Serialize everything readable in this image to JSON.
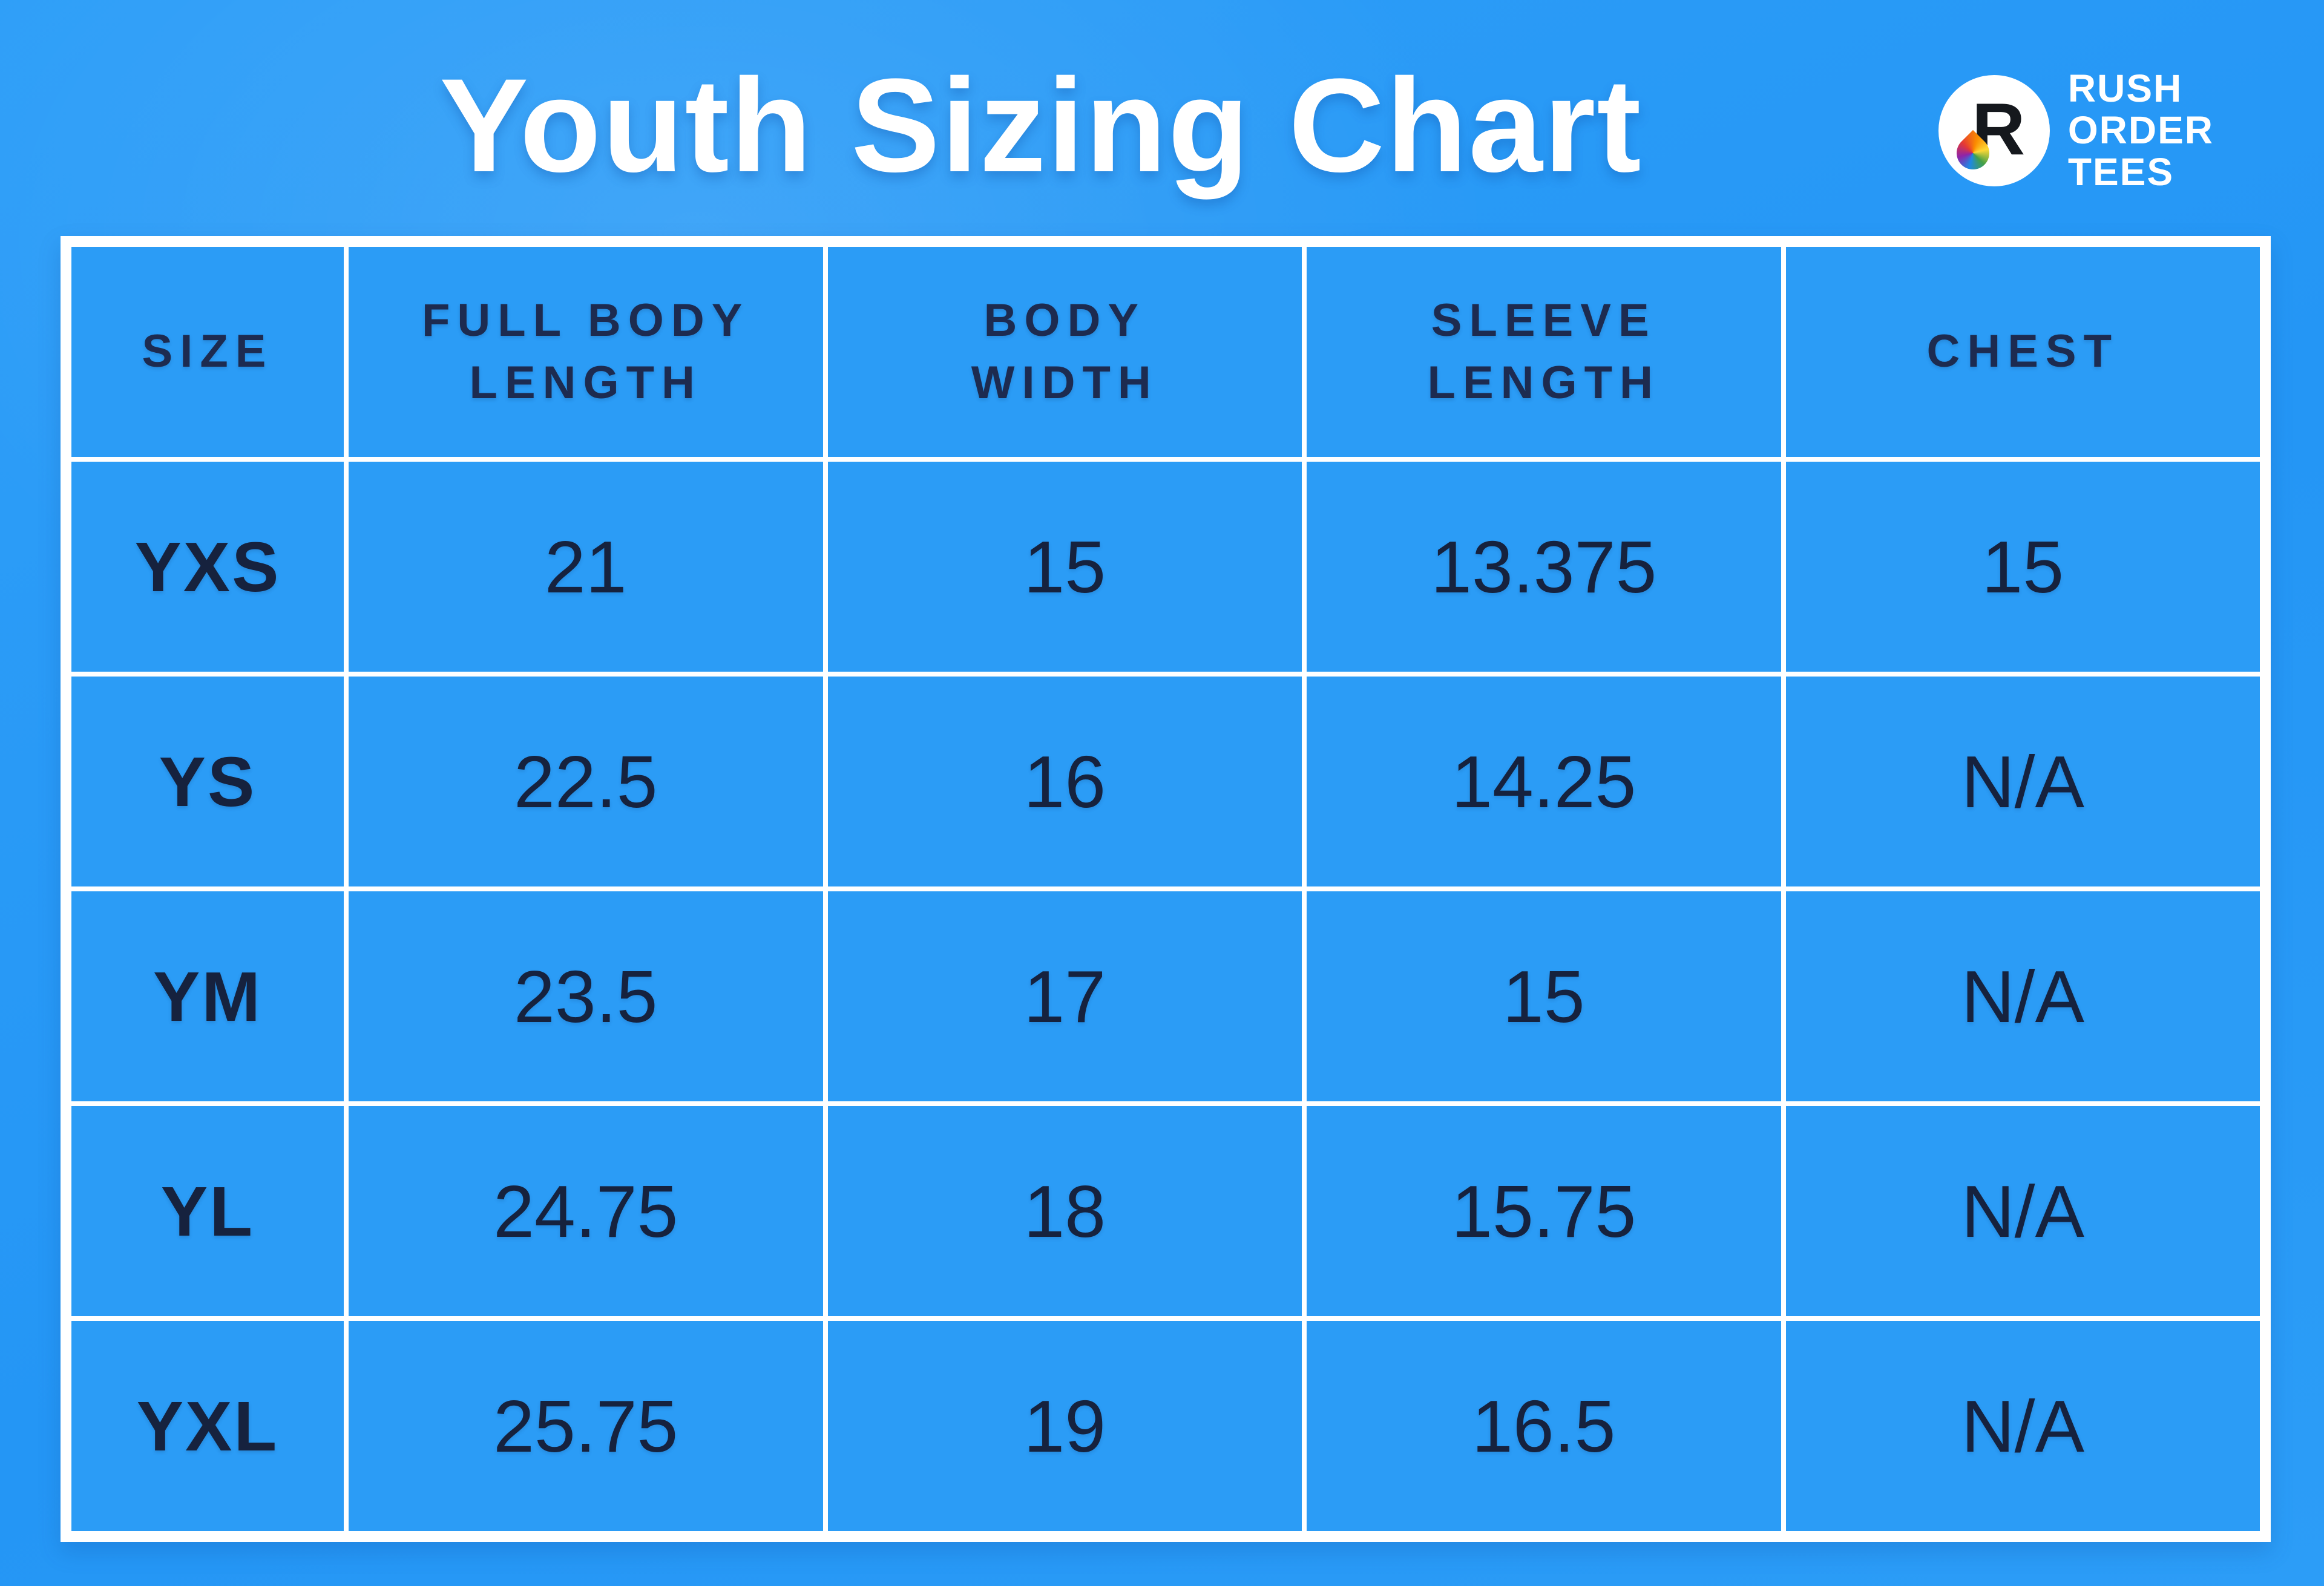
{
  "title": "Youth Sizing Chart",
  "brand": {
    "monogram": "R",
    "lines": [
      "RUSH",
      "ORDER",
      "TEES"
    ]
  },
  "display": {
    "header_labels": [
      "SIZE",
      "FULL BODY\nLENGTH",
      "BODY\nWIDTH",
      "SLEEVE\nLENGTH",
      "CHEST"
    ]
  },
  "chart_data": {
    "type": "table",
    "title": "Youth Sizing Chart",
    "columns": [
      "SIZE",
      "FULL BODY LENGTH",
      "BODY WIDTH",
      "SLEEVE LENGTH",
      "CHEST"
    ],
    "rows": [
      [
        "YXS",
        "21",
        "15",
        "13.375",
        "15"
      ],
      [
        "YS",
        "22.5",
        "16",
        "14.25",
        "N/A"
      ],
      [
        "YM",
        "23.5",
        "17",
        "15",
        "N/A"
      ],
      [
        "YL",
        "24.75",
        "18",
        "15.75",
        "N/A"
      ],
      [
        "YXL",
        "25.75",
        "19",
        "16.5",
        "N/A"
      ]
    ]
  },
  "colors": {
    "background_blue": "#2798f5",
    "grid_white": "#ffffff",
    "title_text": "#ffffff",
    "header_text": "#1d2b50",
    "cell_text": "#16223e",
    "monogram_black": "#15181d"
  }
}
